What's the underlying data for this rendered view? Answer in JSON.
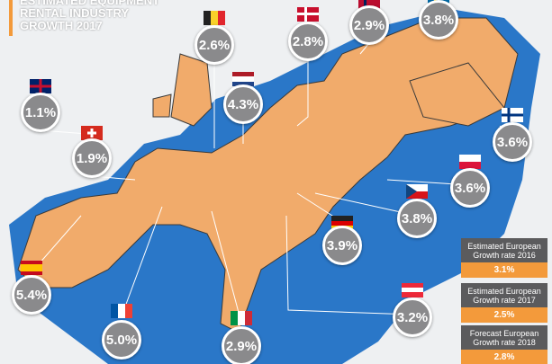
{
  "header": {
    "title_lines": [
      "ESTIMATED EQUIPMENT",
      "RENTAL INDUSTRY",
      "GROWTH 2017"
    ]
  },
  "markers": [
    {
      "label": "2.6%"
    },
    {
      "label": "2.8%"
    },
    {
      "label": "2.9%"
    },
    {
      "label": "3.8%"
    },
    {
      "label": "1.1%"
    },
    {
      "label": "4.3%"
    },
    {
      "label": "3.6%"
    },
    {
      "label": "1.9%"
    },
    {
      "label": "3.6%"
    },
    {
      "label": "3.8%"
    },
    {
      "label": "3.9%"
    },
    {
      "label": "5.4%"
    },
    {
      "label": "3.2%"
    },
    {
      "label": "5.0%"
    },
    {
      "label": "2.9%"
    }
  ],
  "summary_boxes": [
    {
      "caption": "Estimated European Growth rate 2016",
      "value": "3.1%"
    },
    {
      "caption": "Estimated European Growth rate 2017",
      "value": "2.5%"
    },
    {
      "caption": "Forecast European Growth rate 2018",
      "value": "2.8%"
    }
  ]
}
